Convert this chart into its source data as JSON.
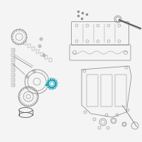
{
  "bg_color": "#f4f4f4",
  "line_color": "#888888",
  "dark_color": "#555555",
  "highlight_fill": "#2299aa",
  "highlight_edge": "#ffffff",
  "highlight_inner": "#55ccdd",
  "fig_width": 2.0,
  "fig_height": 2.0,
  "dpi": 100
}
